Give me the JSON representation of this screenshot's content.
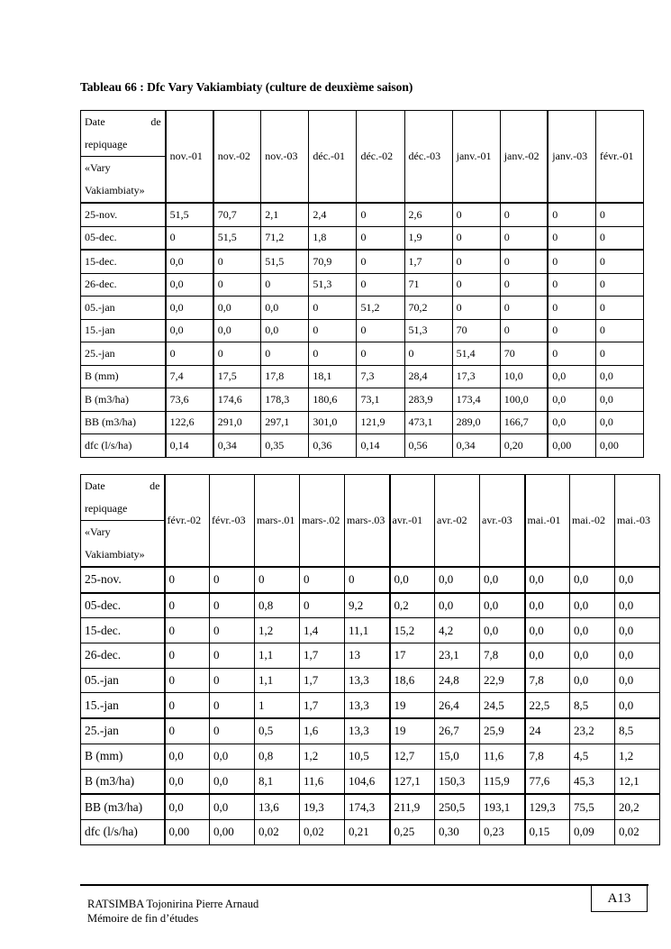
{
  "document": {
    "title": "Tableau 66 : Dfc Vary Vakiambiaty (culture de deuxième saison)",
    "header_cell": {
      "line1_left": "Date",
      "line1_right": "de",
      "line2": "repiquage",
      "line3": "«Vary",
      "line4": "Vakiambiaty»"
    },
    "tables": [
      {
        "columns": [
          "nov.-01",
          "nov.-02",
          "nov.-03",
          "déc.-01",
          "déc.-02",
          "déc.-03",
          "janv.-01",
          "janv.-02",
          "janv.-03",
          "févr.-01"
        ],
        "rows": [
          {
            "label": "25-nov.",
            "values": [
              "51,5",
              "70,7",
              "2,1",
              "2,4",
              "0",
              "2,6",
              "0",
              "0",
              "0",
              "0"
            ]
          },
          {
            "label": "05-dec.",
            "values": [
              "0",
              "51,5",
              "71,2",
              "1,8",
              "0",
              "1,9",
              "0",
              "0",
              "0",
              "0"
            ]
          },
          {
            "label": "15-dec.",
            "values": [
              "0,0",
              "0",
              "51,5",
              "70,9",
              "0",
              "1,7",
              "0",
              "0",
              "0",
              "0"
            ]
          },
          {
            "label": "26-dec.",
            "values": [
              "0,0",
              "0",
              "0",
              "51,3",
              "0",
              "71",
              "0",
              "0",
              "0",
              "0"
            ]
          },
          {
            "label": "05.-jan",
            "values": [
              "0,0",
              "0,0",
              "0,0",
              "0",
              "51,2",
              "70,2",
              "0",
              "0",
              "0",
              "0"
            ]
          },
          {
            "label": "15.-jan",
            "values": [
              "0,0",
              "0,0",
              "0,0",
              "0",
              "0",
              "51,3",
              "70",
              "0",
              "0",
              "0"
            ]
          },
          {
            "label": "25.-jan",
            "values": [
              "0",
              "0",
              "0",
              "0",
              "0",
              "0",
              "51,4",
              "70",
              "0",
              "0"
            ]
          },
          {
            "label": "B (mm)",
            "values": [
              "7,4",
              "17,5",
              "17,8",
              "18,1",
              "7,3",
              "28,4",
              "17,3",
              "10,0",
              "0,0",
              "0,0"
            ]
          },
          {
            "label": "B (m3/ha)",
            "values": [
              "73,6",
              "174,6",
              "178,3",
              "180,6",
              "73,1",
              "283,9",
              "173,4",
              "100,0",
              "0,0",
              "0,0"
            ]
          },
          {
            "label": "BB (m3/ha)",
            "values": [
              "122,6",
              "291,0",
              "297,1",
              "301,0",
              "121,9",
              "473,1",
              "289,0",
              "166,7",
              "0,0",
              "0,0"
            ]
          },
          {
            "label": "dfc (l/s/ha)",
            "values": [
              "0,14",
              "0,34",
              "0,35",
              "0,36",
              "0,14",
              "0,56",
              "0,34",
              "0,20",
              "0,00",
              "0,00"
            ]
          }
        ]
      },
      {
        "columns": [
          "févr.-02",
          "févr.-03",
          "mars-.01",
          "mars-.02",
          "mars-.03",
          "avr.-01",
          "avr.-02",
          "avr.-03",
          "mai.-01",
          "mai.-02",
          "mai.-03"
        ],
        "rows": [
          {
            "label": "25-nov.",
            "values": [
              "0",
              "0",
              "0",
              "0",
              "0",
              "0,0",
              "0,0",
              "0,0",
              "0,0",
              "0,0",
              "0,0"
            ]
          },
          {
            "label": "05-dec.",
            "values": [
              "0",
              "0",
              "0,8",
              "0",
              "9,2",
              "0,2",
              "0,0",
              "0,0",
              "0,0",
              "0,0",
              "0,0"
            ]
          },
          {
            "label": "15-dec.",
            "values": [
              "0",
              "0",
              "1,2",
              "1,4",
              "11,1",
              "15,2",
              "4,2",
              "0,0",
              "0,0",
              "0,0",
              "0,0"
            ]
          },
          {
            "label": "26-dec.",
            "values": [
              "0",
              "0",
              "1,1",
              "1,7",
              "13",
              "17",
              "23,1",
              "7,8",
              "0,0",
              "0,0",
              "0,0"
            ]
          },
          {
            "label": "05.-jan",
            "values": [
              "0",
              "0",
              "1,1",
              "1,7",
              "13,3",
              "18,6",
              "24,8",
              "22,9",
              "7,8",
              "0,0",
              "0,0"
            ]
          },
          {
            "label": "15.-jan",
            "values": [
              "0",
              "0",
              "1",
              "1,7",
              "13,3",
              "19",
              "26,4",
              "24,5",
              "22,5",
              "8,5",
              "0,0"
            ]
          },
          {
            "label": "25.-jan",
            "values": [
              "0",
              "0",
              "0,5",
              "1,6",
              "13,3",
              "19",
              "26,7",
              "25,9",
              "24",
              "23,2",
              "8,5"
            ]
          },
          {
            "label": "B (mm)",
            "values": [
              "0,0",
              "0,0",
              "0,8",
              "1,2",
              "10,5",
              "12,7",
              "15,0",
              "11,6",
              "7,8",
              "4,5",
              "1,2"
            ]
          },
          {
            "label": "B (m3/ha)",
            "values": [
              "0,0",
              "0,0",
              "8,1",
              "11,6",
              "104,6",
              "127,1",
              "150,3",
              "115,9",
              "77,6",
              "45,3",
              "12,1"
            ]
          },
          {
            "label": "BB (m3/ha)",
            "values": [
              "0,0",
              "0,0",
              "13,6",
              "19,3",
              "174,3",
              "211,9",
              "250,5",
              "193,1",
              "129,3",
              "75,5",
              "20,2"
            ]
          },
          {
            "label": "dfc (l/s/ha)",
            "values": [
              "0,00",
              "0,00",
              "0,02",
              "0,02",
              "0,21",
              "0,25",
              "0,30",
              "0,23",
              "0,15",
              "0,09",
              "0,02"
            ]
          }
        ]
      }
    ]
  },
  "footer": {
    "author": "RATSIMBA Tojonirina Pierre Arnaud",
    "subtitle": "Mémoire de fin d’études",
    "page_number": "A13"
  }
}
